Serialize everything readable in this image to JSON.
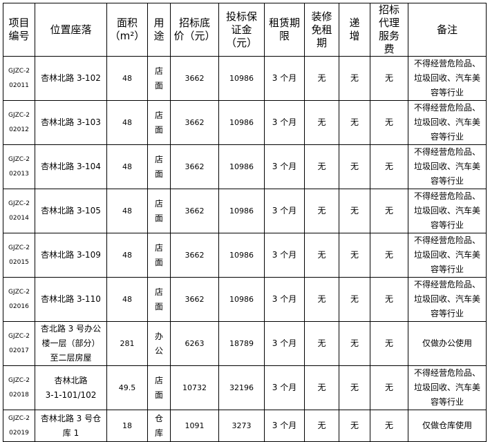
{
  "headers": [
    "项目\n编号",
    "位置座落",
    "面积\n（m²）",
    "用\n途",
    "招标底\n价（元）",
    "投标保\n证金\n（元）",
    "租赁期\n限",
    "装修\n免租\n期",
    "递\n增",
    "招标\n代理\n服务\n费",
    "备注"
  ],
  "rows": [
    [
      "GJZC-2\n02011",
      "杏林北路 3-102",
      "48",
      "店\n面",
      "3662",
      "10986",
      "3 个月",
      "无",
      "无",
      "无",
      "不得经营危险品、\n垃圾回收、汽车美\n容等行业"
    ],
    [
      "GJZC-2\n02012",
      "杏林北路 3-103",
      "48",
      "店\n面",
      "3662",
      "10986",
      "3 个月",
      "无",
      "无",
      "无",
      "不得经营危险品、\n垃圾回收、汽车美\n容等行业"
    ],
    [
      "GJZC-2\n02013",
      "杏林北路 3-104",
      "48",
      "店\n面",
      "3662",
      "10986",
      "3 个月",
      "无",
      "无",
      "无",
      "不得经营危险品、\n垃圾回收、汽车美\n容等行业"
    ],
    [
      "GJZC-2\n02014",
      "杏林北路 3-105",
      "48",
      "店\n面",
      "3662",
      "10986",
      "3 个月",
      "无",
      "无",
      "无",
      "不得经营危险品、\n垃圾回收、汽车美\n容等行业"
    ],
    [
      "GJZC-2\n02015",
      "杏林北路 3-109",
      "48",
      "店\n面",
      "3662",
      "10986",
      "3 个月",
      "无",
      "无",
      "无",
      "不得经营危险品、\n垃圾回收、汽车美\n容等行业"
    ],
    [
      "GJZC-2\n02016",
      "杏林北路 3-110",
      "48",
      "店\n面",
      "3662",
      "10986",
      "3 个月",
      "无",
      "无",
      "无",
      "不得经营危险品、\n垃圾回收、汽车美\n容等行业"
    ],
    [
      "GJZC-2\n02017",
      "杏北路 3 号办公\n楼一层（部分）\n至二层房屋",
      "281",
      "办\n公",
      "6263",
      "18789",
      "3 个月",
      "无",
      "无",
      "无",
      "仅做办公使用"
    ],
    [
      "GJZC-2\n02018",
      "杏林北路\n3-1-101/102",
      "49.5",
      "店\n面",
      "10732",
      "32196",
      "3 个月",
      "无",
      "无",
      "无",
      "不得经营危险品、\n垃圾回收、汽车美\n容等行业"
    ],
    [
      "GJZC-2\n02019",
      "杏林北路 3 号仓\n库 1",
      "18",
      "仓\n库",
      "1091",
      "3273",
      "3 个月",
      "无",
      "无",
      "无",
      "仅做仓库使用"
    ]
  ]
}
